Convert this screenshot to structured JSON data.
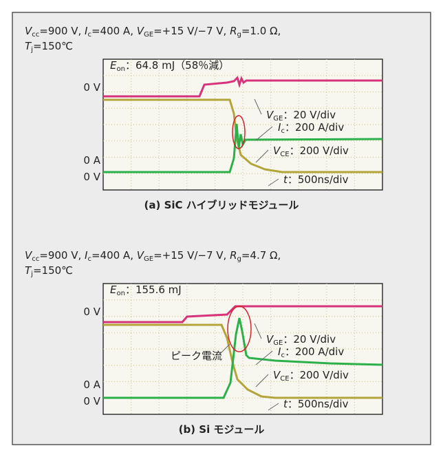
{
  "panels": [
    {
      "conditions": [
        [
          [
            "V",
            "cc",
            "=900 V, "
          ],
          [
            "I",
            "c",
            "=400 A, "
          ],
          [
            "V",
            "GE",
            "=+15 V/−7 V, "
          ],
          [
            "R",
            "g",
            "=1.0 Ω,"
          ]
        ],
        [
          [
            "T",
            "j",
            "=150℃"
          ]
        ]
      ],
      "energy": [
        "E",
        "on",
        "：64.8 mJ（58％減）"
      ],
      "levels": [
        "0 V",
        "0 A",
        "0 V"
      ],
      "channels": [
        [
          "V",
          "GE",
          "：20 V/div"
        ],
        [
          "I",
          "c",
          "：200 A/div"
        ],
        [
          "V",
          "CE",
          "：200 V/div"
        ],
        [
          "t",
          "",
          "：500ns/div"
        ]
      ],
      "caption": "(a)  SiC ハイブリッドモジュール"
    },
    {
      "conditions": [
        [
          [
            "V",
            "cc",
            "=900 V, "
          ],
          [
            "I",
            "c",
            "=400 A, "
          ],
          [
            "V",
            "GE",
            "=+15 V/−7 V, "
          ],
          [
            "R",
            "g",
            "=4.7 Ω,"
          ]
        ],
        [
          [
            "T",
            "j",
            "=150℃"
          ]
        ]
      ],
      "energy": [
        "E",
        "on",
        "：155.6 mJ"
      ],
      "levels": [
        "0 V",
        "0 A",
        "0 V"
      ],
      "channels": [
        [
          "V",
          "GE",
          "：20 V/div"
        ],
        [
          "I",
          "c",
          "：200 A/div"
        ],
        [
          "V",
          "CE",
          "：200 V/div"
        ],
        [
          "t",
          "",
          "：500ns/div"
        ]
      ],
      "peak": "ピーク電流",
      "caption": "(b)  Si モジュール"
    }
  ]
}
